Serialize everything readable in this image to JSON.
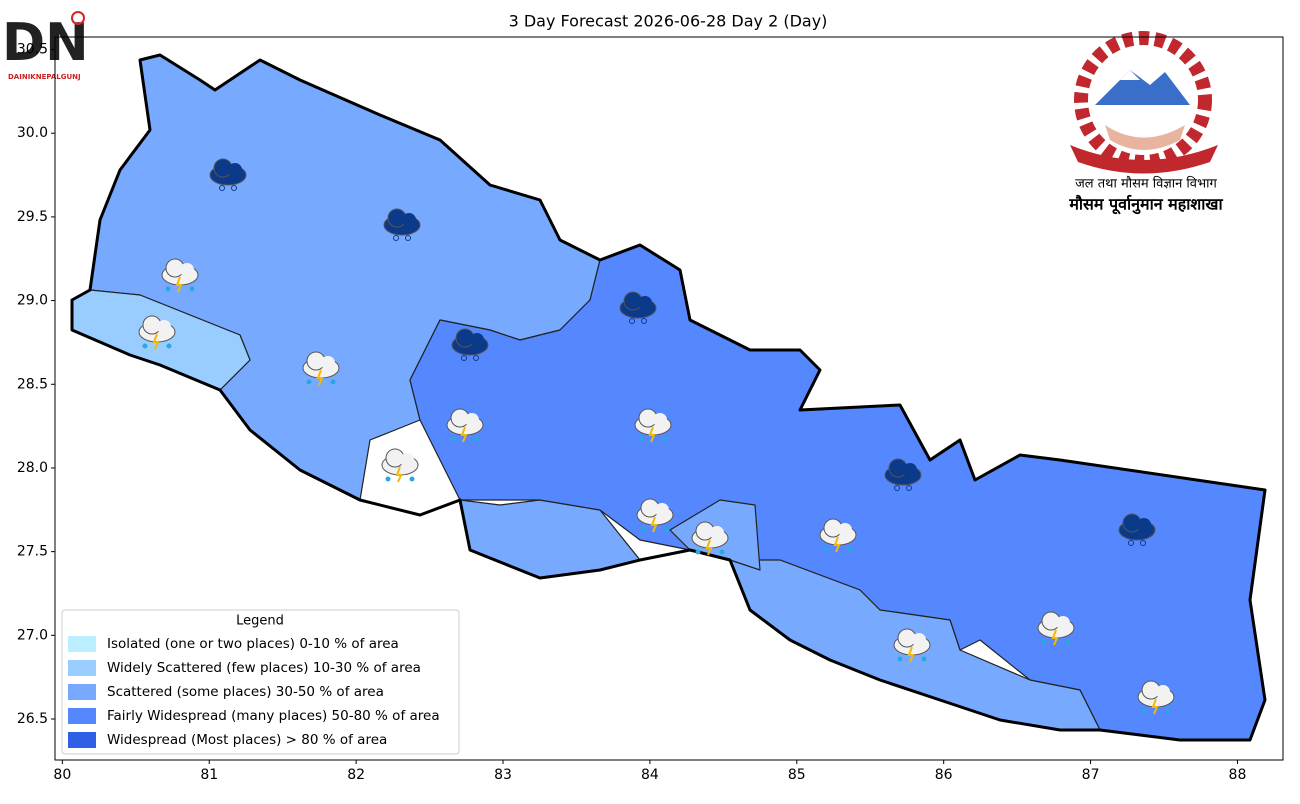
{
  "chart_data": {
    "type": "map",
    "title": "3 Day Forecast 2026-06-28 Day 2 (Day)",
    "xlim": [
      79.95,
      88.31
    ],
    "ylim": [
      26.255,
      30.575
    ],
    "xticks": [
      80,
      81,
      82,
      83,
      84,
      85,
      86,
      87,
      88
    ],
    "yticks": [
      26.5,
      {
        "value": 27,
        "label": "27.0"
      },
      27.5,
      {
        "value": 28,
        "label": "28.0"
      },
      28.5,
      {
        "value": 29,
        "label": "29.0"
      },
      29.5,
      {
        "value": 30,
        "label": "30.0"
      },
      30.5
    ],
    "legend": {
      "title": "Legend",
      "entries": [
        {
          "label": "Isolated (one or two places)  0-10 % of area",
          "color": "#bbeeff"
        },
        {
          "label": "Widely Scattered (few places)  10-30 % of area",
          "color": "#99ccff"
        },
        {
          "label": "Scattered (some places)  30-50 % of area",
          "color": "#77aaff"
        },
        {
          "label": "Fairly Widespread (many places)  50-80 % of area",
          "color": "#5588ff"
        },
        {
          "label": "Widespread (Most places) > 80 % of area",
          "color": "#2f5fe5"
        }
      ]
    },
    "department": "जल तथा मौसम विज्ञान विभाग",
    "division": "मौसम पूर्वानुमान महाशाखा",
    "logo": "DAINIKNEPALGUNJ"
  }
}
